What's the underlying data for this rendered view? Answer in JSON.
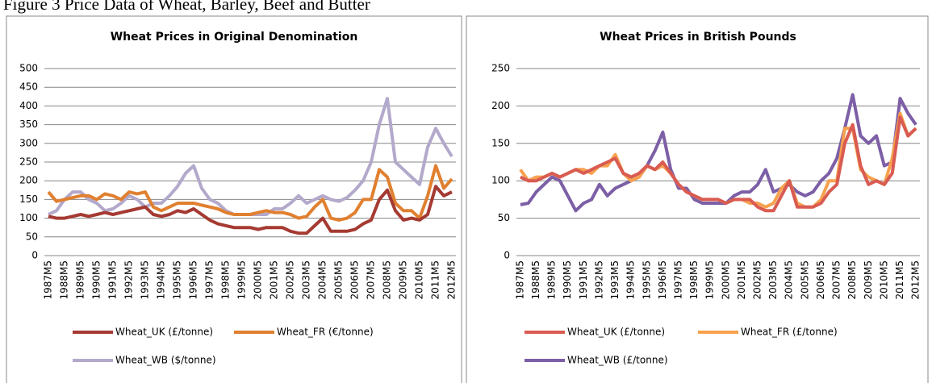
{
  "caption": "Figure 3 Price Data of Wheat, Barley, Beef and Butter",
  "chart_data": [
    {
      "type": "line",
      "title": "Wheat Prices in Original Denomination",
      "categories": [
        "1987M5",
        null,
        "1988M5",
        null,
        "1989M5",
        null,
        "1990M5",
        null,
        "1991M5",
        null,
        "1992M5",
        null,
        "1993M5",
        null,
        "1994M5",
        null,
        "1995M5",
        null,
        "1996M5",
        null,
        "1997M5",
        null,
        "1998M5",
        null,
        "1999M5",
        null,
        "2000M5",
        null,
        "2001M5",
        null,
        "2002M5",
        null,
        "2003M5",
        null,
        "2004M5",
        null,
        "2005M5",
        null,
        "2006M5",
        null,
        "2007M5",
        null,
        "2008M5",
        null,
        "2009M5",
        null,
        "2010M5",
        null,
        "2011M5",
        null,
        "2012M5"
      ],
      "ylim": [
        0,
        500
      ],
      "yticks": [
        0,
        50,
        100,
        150,
        200,
        250,
        300,
        350,
        400,
        450,
        500
      ],
      "grid": true,
      "series": [
        {
          "name": "Wheat_UK (£/tonne)",
          "color": "#a53a32",
          "values": [
            105,
            100,
            100,
            105,
            110,
            105,
            110,
            115,
            110,
            115,
            120,
            125,
            130,
            110,
            105,
            110,
            120,
            115,
            125,
            110,
            95,
            85,
            80,
            75,
            75,
            75,
            70,
            75,
            75,
            75,
            65,
            60,
            60,
            80,
            100,
            65,
            65,
            65,
            70,
            85,
            95,
            150,
            175,
            120,
            95,
            100,
            95,
            110,
            185,
            160,
            170
          ]
        },
        {
          "name": "Wheat_FR (€/tonne)",
          "color": "#e08030",
          "values": [
            170,
            145,
            150,
            155,
            160,
            160,
            150,
            165,
            160,
            150,
            170,
            165,
            170,
            130,
            120,
            130,
            140,
            140,
            140,
            135,
            130,
            125,
            115,
            110,
            110,
            110,
            115,
            120,
            115,
            115,
            110,
            100,
            105,
            130,
            150,
            100,
            95,
            100,
            115,
            150,
            150,
            230,
            210,
            140,
            120,
            120,
            100,
            160,
            240,
            180,
            205
          ]
        },
        {
          "name": "Wheat_WB ($/tonne)",
          "color": "#b3a9cb",
          "values": [
            110,
            120,
            150,
            170,
            170,
            150,
            140,
            120,
            125,
            140,
            160,
            150,
            130,
            140,
            140,
            160,
            185,
            220,
            240,
            180,
            150,
            140,
            120,
            110,
            110,
            110,
            110,
            110,
            125,
            125,
            140,
            160,
            140,
            150,
            160,
            150,
            145,
            155,
            175,
            200,
            250,
            350,
            420,
            250,
            230,
            210,
            190,
            290,
            340,
            300,
            265
          ]
        }
      ]
    },
    {
      "type": "line",
      "title": "Wheat Prices in British Pounds",
      "categories": [
        "1987M5",
        null,
        "1988M5",
        null,
        "1989M5",
        null,
        "1990M5",
        null,
        "1991M5",
        null,
        "1992M5",
        null,
        "1993M5",
        null,
        "1994M5",
        null,
        "1995M5",
        null,
        "1996M5",
        null,
        "1997M5",
        null,
        "1998M5",
        null,
        "1999M5",
        null,
        "2000M5",
        null,
        "2001M5",
        null,
        "2002M5",
        null,
        "2003M5",
        null,
        "2004M5",
        null,
        "2005M5",
        null,
        "2006M5",
        null,
        "2007M5",
        null,
        "2008M5",
        null,
        "2009M5",
        null,
        "2010M5",
        null,
        "2011M5",
        null,
        "2012M5"
      ],
      "ylim": [
        0,
        250
      ],
      "yticks": [
        0,
        50,
        100,
        150,
        200,
        250
      ],
      "grid": true,
      "series": [
        {
          "name": "Wheat_UK (£/tonne)",
          "color": "#d95b52",
          "values": [
            105,
            100,
            100,
            105,
            110,
            105,
            110,
            115,
            110,
            115,
            120,
            125,
            130,
            110,
            105,
            110,
            120,
            115,
            125,
            110,
            95,
            85,
            80,
            75,
            75,
            75,
            70,
            75,
            75,
            75,
            65,
            60,
            60,
            80,
            100,
            65,
            65,
            65,
            70,
            85,
            95,
            150,
            175,
            120,
            95,
            100,
            95,
            110,
            185,
            160,
            170
          ]
        },
        {
          "name": "Wheat_FR (£/tonne)",
          "color": "#f7a14e",
          "values": [
            115,
            100,
            105,
            105,
            110,
            105,
            110,
            115,
            115,
            110,
            120,
            120,
            135,
            110,
            100,
            105,
            120,
            115,
            120,
            110,
            95,
            85,
            80,
            75,
            75,
            75,
            70,
            75,
            75,
            70,
            70,
            65,
            70,
            90,
            100,
            70,
            65,
            65,
            75,
            100,
            100,
            170,
            170,
            115,
            105,
            100,
            95,
            130,
            190,
            160,
            170
          ]
        },
        {
          "name": "Wheat_WB (£/tonne)",
          "color": "#7c5fa6",
          "values": [
            68,
            70,
            85,
            95,
            105,
            100,
            80,
            60,
            70,
            75,
            95,
            80,
            90,
            95,
            100,
            105,
            120,
            140,
            165,
            115,
            90,
            90,
            75,
            70,
            70,
            70,
            70,
            80,
            85,
            85,
            95,
            115,
            85,
            90,
            95,
            85,
            80,
            85,
            100,
            110,
            130,
            170,
            215,
            160,
            150,
            160,
            120,
            125,
            210,
            190,
            175
          ]
        }
      ]
    }
  ]
}
